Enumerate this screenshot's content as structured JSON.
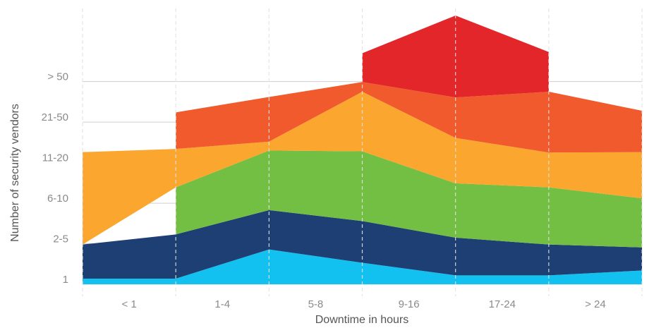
{
  "chart_data": {
    "type": "stacked-area",
    "x_label": "Downtime in hours",
    "y_label": "Number of security vendors",
    "x": [
      0,
      1,
      2,
      3,
      4,
      5,
      6
    ],
    "xlim": [
      0,
      6
    ],
    "xticks": [
      {
        "value": 0.5,
        "label": "< 1"
      },
      {
        "value": 1.5,
        "label": "1-4"
      },
      {
        "value": 2.5,
        "label": "5-8"
      },
      {
        "value": 3.5,
        "label": "9-16"
      },
      {
        "value": 4.5,
        "label": "17-24"
      },
      {
        "value": 5.5,
        "label": "> 24"
      }
    ],
    "ylim": [
      0,
      6.7
    ],
    "yticks": [
      {
        "value": 0,
        "label": "1"
      },
      {
        "value": 1,
        "label": "2-5"
      },
      {
        "value": 2,
        "label": "6-10"
      },
      {
        "value": 3,
        "label": "11-20"
      },
      {
        "value": 4,
        "label": "21-50"
      },
      {
        "value": 5,
        "label": "> 50"
      }
    ],
    "grid": true,
    "series": [
      {
        "color": "#12c1ef",
        "values": [
          0.14,
          0.14,
          0.86,
          0.53,
          0.22,
          0.22,
          0.34
        ]
      },
      {
        "color": "#1e3f74",
        "values": [
          0.84,
          1.09,
          0.97,
          1.03,
          0.93,
          0.76,
          0.57
        ]
      },
      {
        "color": "#72bf44",
        "values": [
          null,
          1.16,
          1.47,
          1.72,
          1.34,
          1.41,
          1.21
        ]
      },
      {
        "color": "#fba62f",
        "values": [
          2.28,
          0.95,
          0.22,
          1.47,
          1.12,
          0.86,
          1.14
        ]
      },
      {
        "color": "#f05a2c",
        "values": [
          null,
          0.9,
          1.1,
          0.24,
          1.0,
          1.5,
          1.02
        ]
      },
      {
        "color": "#e3262a",
        "values": [
          null,
          null,
          null,
          0.71,
          2.02,
          0.98,
          null
        ]
      }
    ]
  }
}
